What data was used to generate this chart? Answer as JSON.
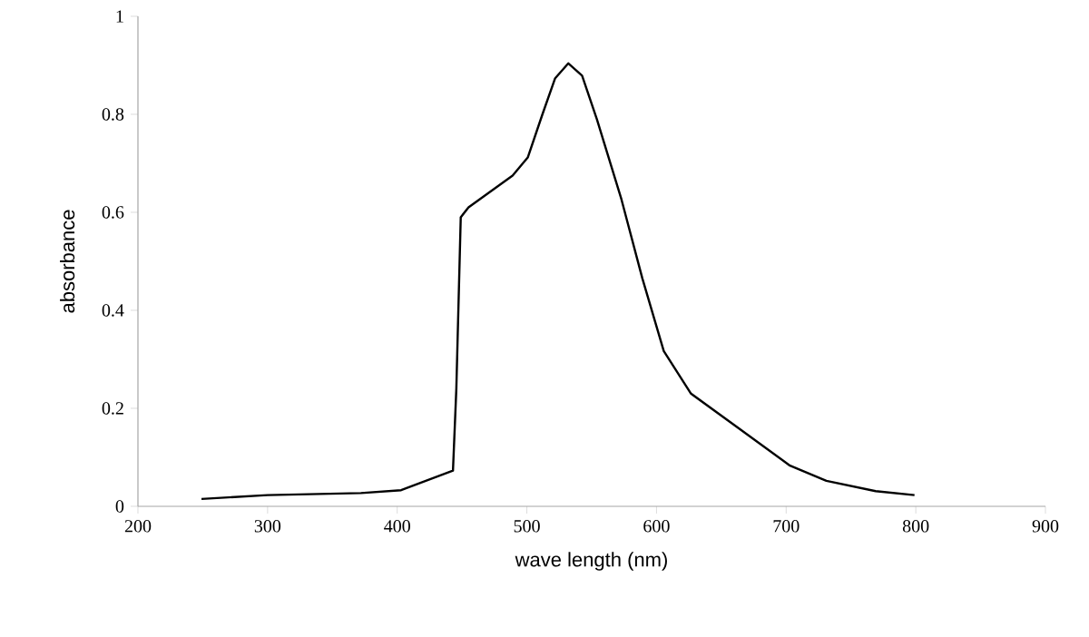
{
  "chart_data": {
    "type": "line",
    "xlabel": "wave length (nm)",
    "ylabel": "absorbance",
    "color": "#000000",
    "x": [
      249,
      300,
      372,
      403,
      443,
      445.6,
      449,
      455,
      489,
      500.7,
      512,
      521.7,
      532,
      542.6,
      554,
      573,
      589,
      605.6,
      626.6,
      661.5,
      703,
      731,
      769,
      799
    ],
    "values": [
      0.015,
      0.023,
      0.027,
      0.033,
      0.073,
      0.24,
      0.59,
      0.61,
      0.675,
      0.712,
      0.8,
      0.873,
      0.904,
      0.879,
      0.79,
      0.626,
      0.466,
      0.317,
      0.23,
      0.163,
      0.083,
      0.052,
      0.031,
      0.023
    ],
    "xlim": [
      200,
      900
    ],
    "ylim": [
      0,
      1
    ],
    "xticks": [
      200,
      300,
      400,
      500,
      600,
      700,
      800,
      900
    ],
    "yticks": [
      0,
      0.2,
      0.4,
      0.6,
      0.8,
      1
    ],
    "grid": false,
    "marker": "none",
    "line_style": "solid"
  }
}
